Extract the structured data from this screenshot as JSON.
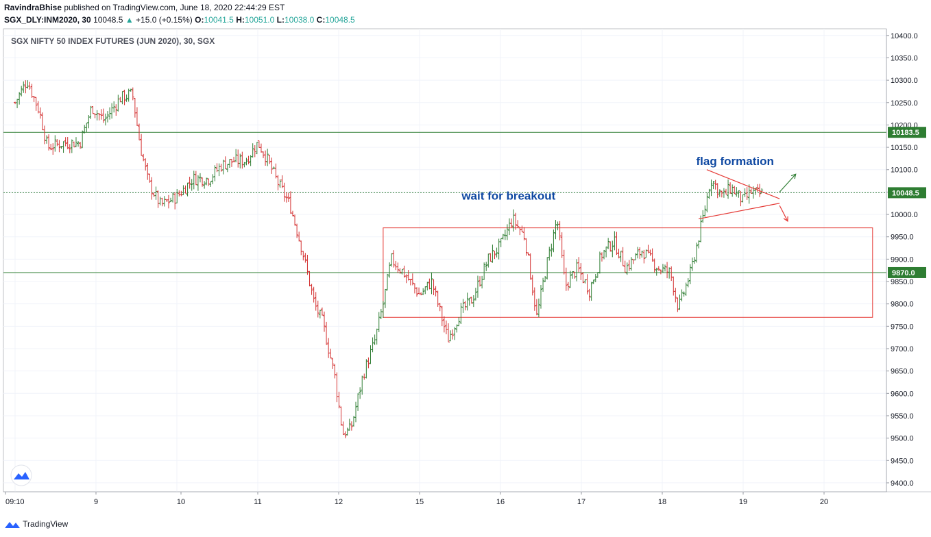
{
  "header": {
    "author": "RavindraBhise",
    "published_text": " published on TradingView.com, June 18, 2020 22:44:29 EST",
    "symbol": "SGX_DLY:INM2020, 30",
    "last": "10048.5",
    "arrow": "▲",
    "change": "+15.0 (+0.15%)",
    "o_label": "O:",
    "o_value": "10041.5",
    "h_label": "H:",
    "h_value": "10051.0",
    "l_label": "L:",
    "l_value": "10038.0",
    "c_label": "C:",
    "c_value": "10048.5"
  },
  "footer": {
    "brand": "TradingView"
  },
  "colors": {
    "up": "#26a69a",
    "candle_up": "#2e7d32",
    "candle_down": "#d32f2f",
    "hline": "#2e7d32",
    "box": "#e53935",
    "text_blue": "#0d47a1",
    "grid": "#f0f3fa"
  },
  "chart_data": {
    "type": "ohlc",
    "title": "SGX NIFTY 50 INDEX FUTURES (JUN 2020), 30, SGX",
    "x_tick_labels": [
      "09:10",
      "9",
      "10",
      "11",
      "12",
      "15",
      "16",
      "17",
      "18",
      "19",
      "20"
    ],
    "y_ticks": [
      9400,
      9450,
      9500,
      9550,
      9600,
      9650,
      9700,
      9750,
      9800,
      9850,
      9900,
      9950,
      10000,
      10050,
      10100,
      10150,
      10200,
      10250,
      10300,
      10350,
      10400
    ],
    "ylim": [
      9380,
      10415
    ],
    "price_path": [
      {
        "day": 0,
        "price": 10250
      },
      {
        "day": 0.15,
        "price": 10300
      },
      {
        "day": 0.3,
        "price": 10230
      },
      {
        "day": 0.4,
        "price": 10150
      },
      {
        "day": 0.6,
        "price": 10160
      },
      {
        "day": 0.8,
        "price": 10160
      },
      {
        "day": 0.95,
        "price": 10240
      },
      {
        "day": 1.1,
        "price": 10210
      },
      {
        "day": 1.3,
        "price": 10260
      },
      {
        "day": 1.45,
        "price": 10270
      },
      {
        "day": 1.55,
        "price": 10150
      },
      {
        "day": 1.65,
        "price": 10070
      },
      {
        "day": 1.8,
        "price": 10020
      },
      {
        "day": 2.0,
        "price": 10040
      },
      {
        "day": 2.2,
        "price": 10080
      },
      {
        "day": 2.4,
        "price": 10080
      },
      {
        "day": 2.55,
        "price": 10110
      },
      {
        "day": 2.7,
        "price": 10120
      },
      {
        "day": 2.85,
        "price": 10120
      },
      {
        "day": 3.0,
        "price": 10160
      },
      {
        "day": 3.1,
        "price": 10130
      },
      {
        "day": 3.25,
        "price": 10070
      },
      {
        "day": 3.4,
        "price": 10020
      },
      {
        "day": 3.55,
        "price": 9920
      },
      {
        "day": 3.7,
        "price": 9800
      },
      {
        "day": 3.8,
        "price": 9760
      },
      {
        "day": 3.95,
        "price": 9640
      },
      {
        "day": 4.05,
        "price": 9510
      },
      {
        "day": 4.15,
        "price": 9520
      },
      {
        "day": 4.3,
        "price": 9640
      },
      {
        "day": 4.45,
        "price": 9720
      },
      {
        "day": 4.55,
        "price": 9800
      },
      {
        "day": 4.65,
        "price": 9900
      },
      {
        "day": 4.8,
        "price": 9870
      },
      {
        "day": 5.0,
        "price": 9820
      },
      {
        "day": 5.15,
        "price": 9850
      },
      {
        "day": 5.35,
        "price": 9720
      },
      {
        "day": 5.5,
        "price": 9780
      },
      {
        "day": 5.65,
        "price": 9810
      },
      {
        "day": 5.85,
        "price": 9900
      },
      {
        "day": 6.0,
        "price": 9930
      },
      {
        "day": 6.15,
        "price": 9990
      },
      {
        "day": 6.3,
        "price": 9950
      },
      {
        "day": 6.45,
        "price": 9770
      },
      {
        "day": 6.55,
        "price": 9870
      },
      {
        "day": 6.7,
        "price": 9990
      },
      {
        "day": 6.8,
        "price": 9840
      },
      {
        "day": 6.95,
        "price": 9880
      },
      {
        "day": 7.1,
        "price": 9830
      },
      {
        "day": 7.25,
        "price": 9910
      },
      {
        "day": 7.4,
        "price": 9940
      },
      {
        "day": 7.55,
        "price": 9880
      },
      {
        "day": 7.75,
        "price": 9920
      },
      {
        "day": 7.95,
        "price": 9880
      },
      {
        "day": 8.1,
        "price": 9870
      },
      {
        "day": 8.2,
        "price": 9790
      },
      {
        "day": 8.35,
        "price": 9870
      },
      {
        "day": 8.5,
        "price": 9990
      },
      {
        "day": 8.6,
        "price": 10080
      },
      {
        "day": 8.75,
        "price": 10040
      },
      {
        "day": 8.85,
        "price": 10060
      },
      {
        "day": 9.0,
        "price": 10030
      },
      {
        "day": 9.1,
        "price": 10050
      },
      {
        "day": 9.2,
        "price": 10045
      },
      {
        "day": 9.25,
        "price": 10048.5
      }
    ],
    "horizontal_lines": [
      {
        "price": 10183.5,
        "label": "10183.5",
        "style": "solid"
      },
      {
        "price": 9870.0,
        "label": "9870.0",
        "style": "solid"
      },
      {
        "price": 10048.5,
        "label": "10048.5",
        "style": "dotted"
      }
    ],
    "range_box": {
      "x_start_day": 4.55,
      "x_end_day": 10.6,
      "price_top": 9970,
      "price_bottom": 9770
    },
    "flag": {
      "upper": [
        {
          "day": 8.55,
          "price": 10100
        },
        {
          "day": 9.45,
          "price": 10035
        }
      ],
      "lower": [
        {
          "day": 8.45,
          "price": 9990
        },
        {
          "day": 9.45,
          "price": 10025
        }
      ]
    },
    "breakout_arrows": [
      {
        "from": {
          "day": 9.45,
          "price": 10050
        },
        "to": {
          "day": 9.65,
          "price": 10090
        },
        "color": "green"
      },
      {
        "from": {
          "day": 9.45,
          "price": 10020
        },
        "to": {
          "day": 9.55,
          "price": 9985
        },
        "color": "red"
      }
    ],
    "annotations": [
      {
        "text": "flag formation",
        "day": 8.9,
        "price": 10110
      },
      {
        "text": "wait for breakout",
        "day": 6.1,
        "price": 10033
      }
    ],
    "grid": true,
    "legend": "none"
  }
}
